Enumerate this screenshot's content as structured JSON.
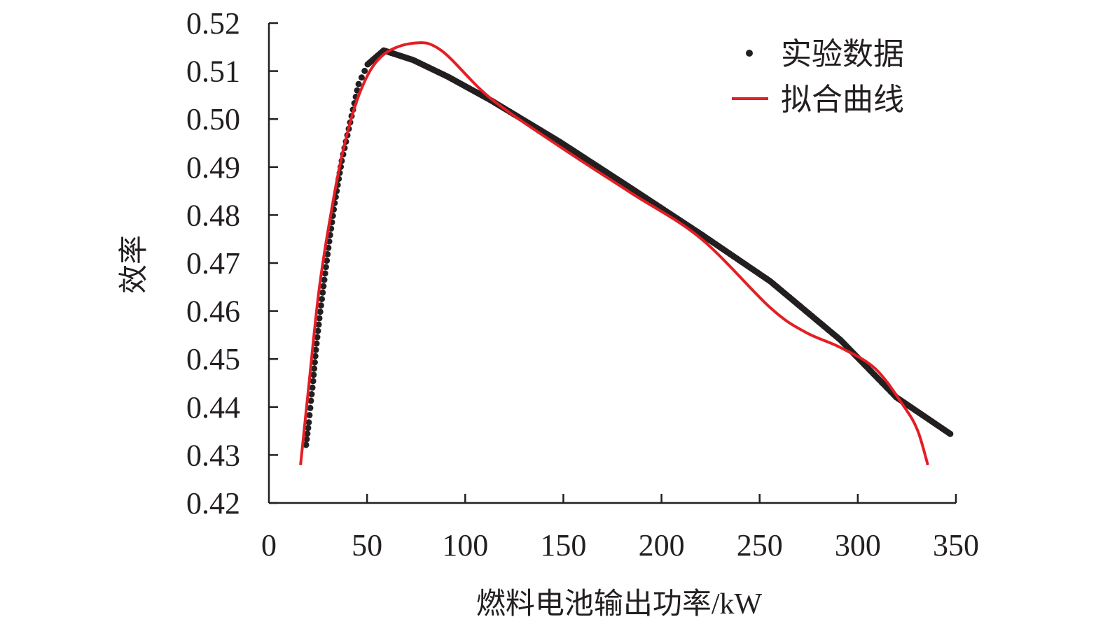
{
  "chart_data": {
    "type": "scatter",
    "title": "",
    "xlabel": "燃料电池输出功率/kW",
    "ylabel": "效率",
    "xlim": [
      0,
      350
    ],
    "ylim": [
      0.42,
      0.52
    ],
    "x_ticks": [
      "0",
      "50",
      "100",
      "150",
      "200",
      "250",
      "300",
      "350"
    ],
    "y_ticks": [
      "0.52",
      "0.51",
      "0.50",
      "0.49",
      "0.48",
      "0.47",
      "0.46",
      "0.45",
      "0.44",
      "0.43",
      "0.42"
    ],
    "grid": false,
    "legend_position": "top-right",
    "series": [
      {
        "name": "实验数据",
        "kind": "scatter",
        "color": "#231f20",
        "points": [
          [
            18.9,
            0.4321
          ],
          [
            20.3,
            0.4368
          ],
          [
            21.4,
            0.4413
          ],
          [
            22.5,
            0.4454
          ],
          [
            23.9,
            0.4519
          ],
          [
            25.7,
            0.4585
          ],
          [
            28.2,
            0.4665
          ],
          [
            30.7,
            0.4745
          ],
          [
            33.5,
            0.4825
          ],
          [
            37.1,
            0.4913
          ],
          [
            41.4,
            0.4993
          ],
          [
            45.7,
            0.5073
          ],
          [
            50.3,
            0.5114
          ],
          [
            58.5,
            0.5143
          ],
          [
            73.5,
            0.5123
          ],
          [
            91.3,
            0.5088
          ],
          [
            112.7,
            0.504
          ],
          [
            148.4,
            0.4952
          ],
          [
            184.1,
            0.4857
          ],
          [
            219.8,
            0.4761
          ],
          [
            255.4,
            0.4662
          ],
          [
            291.1,
            0.454
          ],
          [
            319.7,
            0.442
          ],
          [
            347.1,
            0.4344
          ]
        ]
      },
      {
        "name": "拟合曲线",
        "kind": "line",
        "color": "#e31e24",
        "points": [
          [
            16.1,
            0.4279
          ],
          [
            20,
            0.4432
          ],
          [
            25.3,
            0.4636
          ],
          [
            30.7,
            0.4782
          ],
          [
            37.8,
            0.4935
          ],
          [
            46.7,
            0.5059
          ],
          [
            57.4,
            0.5131
          ],
          [
            73.5,
            0.5158
          ],
          [
            87.8,
            0.5143
          ],
          [
            112.7,
            0.5044
          ],
          [
            148.4,
            0.4942
          ],
          [
            184.1,
            0.4847
          ],
          [
            219.8,
            0.4752
          ],
          [
            255.4,
            0.4607
          ],
          [
            273.3,
            0.4556
          ],
          [
            291.1,
            0.4524
          ],
          [
            308.9,
            0.448
          ],
          [
            323.2,
            0.4403
          ],
          [
            330.4,
            0.4352
          ],
          [
            335.7,
            0.4279
          ]
        ]
      }
    ]
  }
}
